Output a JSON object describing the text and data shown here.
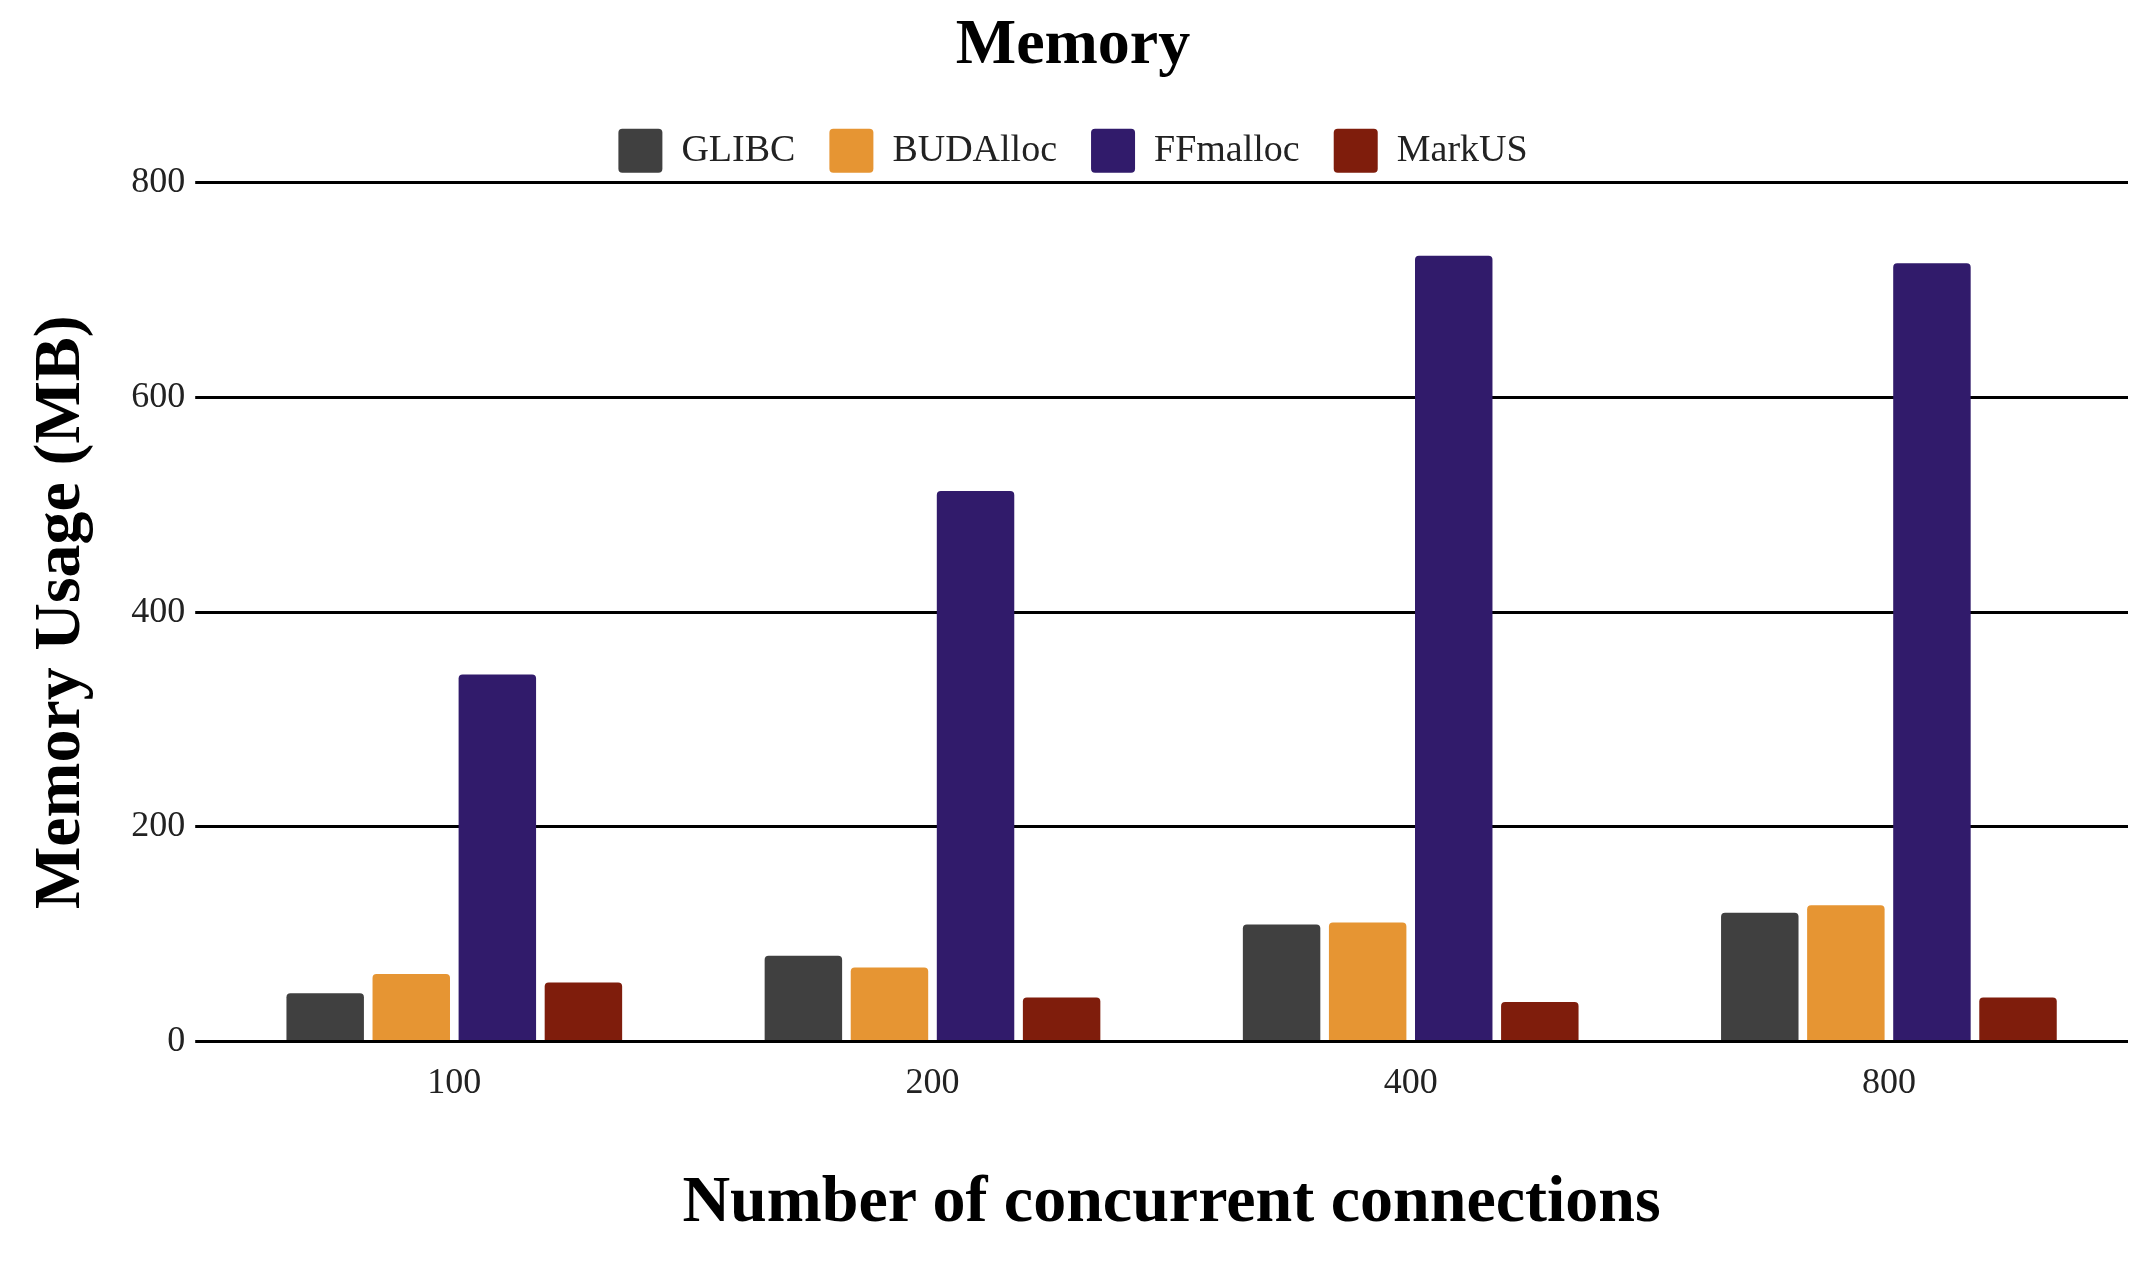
{
  "chart_data": {
    "type": "bar",
    "title": "Memory",
    "xlabel": "Number of concurrent connections",
    "ylabel": "Memory Usage (MB)",
    "categories": [
      "100",
      "200",
      "400",
      "800"
    ],
    "series": [
      {
        "name": "GLIBC",
        "color": "#404040",
        "values": [
          45,
          80,
          109,
          120
        ]
      },
      {
        "name": "BUDAlloc",
        "color": "#e69533",
        "values": [
          63,
          69,
          111,
          127
        ]
      },
      {
        "name": "FFmalloc",
        "color": "#311b6b",
        "values": [
          342,
          513,
          732,
          725
        ]
      },
      {
        "name": "MarkUS",
        "color": "#7f1d0c",
        "values": [
          55,
          41,
          37,
          41
        ]
      }
    ],
    "ylim": [
      0,
      800
    ],
    "yticks": [
      0,
      200,
      400,
      600,
      800
    ],
    "grid": "y",
    "legend": "top"
  }
}
